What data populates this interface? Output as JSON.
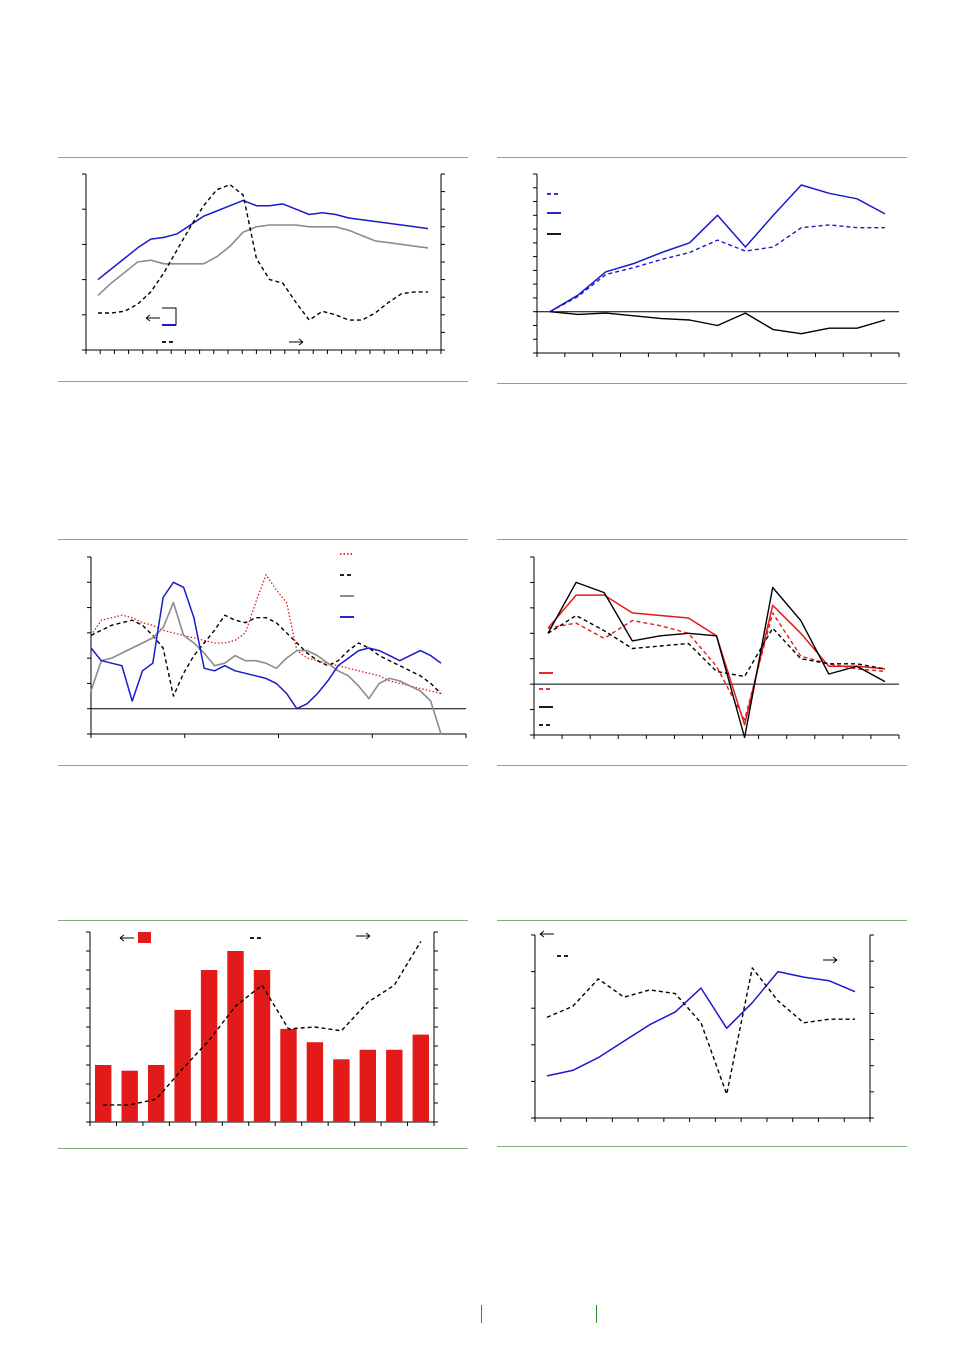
{
  "colors": {
    "blue": "#1a1acc",
    "gray": "#8c8c8c",
    "black": "#000000",
    "red": "#e31a1a",
    "rule": "#7fae7f"
  },
  "chart_data": [
    {
      "id": "c1",
      "type": "line",
      "x_count": 26,
      "ylim": [
        0,
        100
      ],
      "ylim_right": [
        0,
        100
      ],
      "series": [
        {
          "style": "blue-solid",
          "axis": "left",
          "values": [
            40,
            46,
            52,
            58,
            63,
            64,
            66,
            71,
            76,
            79,
            82,
            85,
            82,
            82,
            83,
            80,
            77,
            78,
            77,
            75,
            74,
            73,
            72,
            71,
            70,
            69
          ]
        },
        {
          "style": "gray-solid",
          "axis": "left",
          "values": [
            31,
            38,
            44,
            50,
            51,
            49,
            49,
            49,
            49,
            53,
            59,
            67,
            70,
            71,
            71,
            71,
            70,
            70,
            70,
            68,
            65,
            62,
            61,
            60,
            59,
            58
          ]
        },
        {
          "style": "black-dash",
          "axis": "right",
          "values": [
            21,
            21,
            22,
            26,
            33,
            44,
            57,
            70,
            82,
            91,
            94,
            88,
            52,
            40,
            38,
            27,
            17,
            22,
            20,
            17,
            17,
            21,
            27,
            32,
            33,
            33
          ]
        }
      ]
    },
    {
      "id": "c2",
      "type": "line",
      "x_count": 14,
      "ylim": [
        -30,
        100
      ],
      "series": [
        {
          "style": "blue-dash",
          "values": [
            0,
            11,
            27,
            32,
            38,
            43,
            52,
            44,
            47,
            61,
            63,
            61,
            61
          ]
        },
        {
          "style": "blue-solid",
          "values": [
            0,
            12,
            29,
            35,
            43,
            50,
            70,
            47,
            70,
            92,
            86,
            82,
            71
          ]
        },
        {
          "style": "black-solid",
          "values": [
            0,
            -2,
            -1,
            -3,
            -5,
            -6,
            -10,
            -1,
            -13,
            -16,
            -12,
            -12,
            -6
          ]
        }
      ]
    },
    {
      "id": "c3",
      "type": "line",
      "ylim": [
        -1,
        6
      ],
      "series": [
        {
          "style": "red-dot",
          "values": [
            2.9,
            3.5,
            3.6,
            3.7,
            3.6,
            3.4,
            3.3,
            3.1,
            3.0,
            2.9,
            2.8,
            2.7,
            2.6,
            2.6,
            2.7,
            3.0,
            4.2,
            5.3,
            4.7,
            4.2,
            2.3,
            2.0,
            1.9,
            1.8,
            1.7,
            1.6,
            1.5,
            1.4,
            1.3,
            1.1,
            1.0,
            0.9,
            0.8,
            0.7,
            0.6
          ]
        },
        {
          "style": "black-dash",
          "values": [
            2.9,
            3.1,
            3.3,
            3.4,
            3.5,
            3.3,
            2.9,
            2.4,
            0.5,
            1.4,
            2.1,
            2.6,
            3.1,
            3.7,
            3.5,
            3.4,
            3.6,
            3.6,
            3.4,
            3.0,
            2.6,
            2.2,
            1.9,
            1.7,
            1.9,
            2.3,
            2.6,
            2.4,
            2.1,
            1.9,
            1.7,
            1.5,
            1.3,
            1.0,
            0.6
          ]
        },
        {
          "style": "gray-solid",
          "values": [
            0.7,
            1.9,
            2.0,
            2.2,
            2.4,
            2.6,
            2.8,
            3.2,
            4.2,
            2.9,
            2.6,
            2.2,
            1.7,
            1.8,
            2.1,
            1.9,
            1.9,
            1.8,
            1.6,
            2.0,
            2.3,
            2.3,
            2.1,
            1.8,
            1.5,
            1.3,
            0.9,
            0.4,
            1.0,
            1.2,
            1.1,
            0.9,
            0.7,
            0.3,
            -1.0
          ]
        },
        {
          "style": "blue-solid",
          "values": [
            2.4,
            1.9,
            1.8,
            1.7,
            0.3,
            1.5,
            1.8,
            4.4,
            5.0,
            4.8,
            3.6,
            1.6,
            1.5,
            1.7,
            1.5,
            1.4,
            1.3,
            1.2,
            1.0,
            0.6,
            0.0,
            0.2,
            0.6,
            1.1,
            1.7,
            2.0,
            2.3,
            2.4,
            2.3,
            2.1,
            1.9,
            2.1,
            2.3,
            2.1,
            1.8
          ]
        }
      ]
    },
    {
      "id": "c4",
      "type": "line",
      "x_count": 13,
      "ylim": [
        -2,
        5
      ],
      "series": [
        {
          "style": "red-solid",
          "values": [
            2.2,
            3.5,
            3.5,
            2.8,
            2.7,
            2.6,
            1.9,
            -1.6,
            3.1,
            2.0,
            0.7,
            0.7,
            0.6
          ]
        },
        {
          "style": "red-dash",
          "values": [
            2.2,
            2.4,
            1.8,
            2.5,
            2.3,
            2.0,
            0.7,
            -1.4,
            2.8,
            1.1,
            0.8,
            0.6,
            0.5
          ]
        },
        {
          "style": "black-solid",
          "values": [
            2.0,
            4.0,
            3.6,
            1.7,
            1.9,
            2.0,
            1.9,
            -2.1,
            3.8,
            2.5,
            0.4,
            0.7,
            0.1
          ]
        },
        {
          "style": "black-dash",
          "values": [
            2.0,
            2.7,
            2.1,
            1.4,
            1.5,
            1.6,
            0.5,
            0.3,
            2.2,
            1.0,
            0.8,
            0.8,
            0.6
          ]
        }
      ]
    },
    {
      "id": "c5",
      "type": "bar+line",
      "categories_count": 13,
      "ylim": [
        0,
        100
      ],
      "ylim_right": [
        0,
        100
      ],
      "series": [
        {
          "style": "red-bar",
          "axis": "left",
          "values": [
            30,
            27,
            30,
            59,
            80,
            90,
            80,
            49,
            42,
            33,
            38,
            38,
            46
          ]
        },
        {
          "style": "black-dash",
          "axis": "right",
          "values": [
            9,
            9,
            12,
            28,
            43,
            61,
            72,
            49,
            50,
            48,
            63,
            72,
            95
          ]
        }
      ]
    },
    {
      "id": "c6",
      "type": "line",
      "x_count": 14,
      "ylim": [
        0,
        100
      ],
      "ylim_right": [
        0,
        100
      ],
      "series": [
        {
          "style": "blue-solid",
          "axis": "left",
          "values": [
            23,
            26,
            33,
            42,
            51,
            58,
            71,
            49,
            63,
            80,
            77,
            75,
            69
          ]
        },
        {
          "style": "black-dash",
          "axis": "right",
          "values": [
            55,
            61,
            76,
            66,
            70,
            68,
            52,
            13,
            82,
            64,
            52,
            54,
            54
          ]
        }
      ]
    }
  ]
}
